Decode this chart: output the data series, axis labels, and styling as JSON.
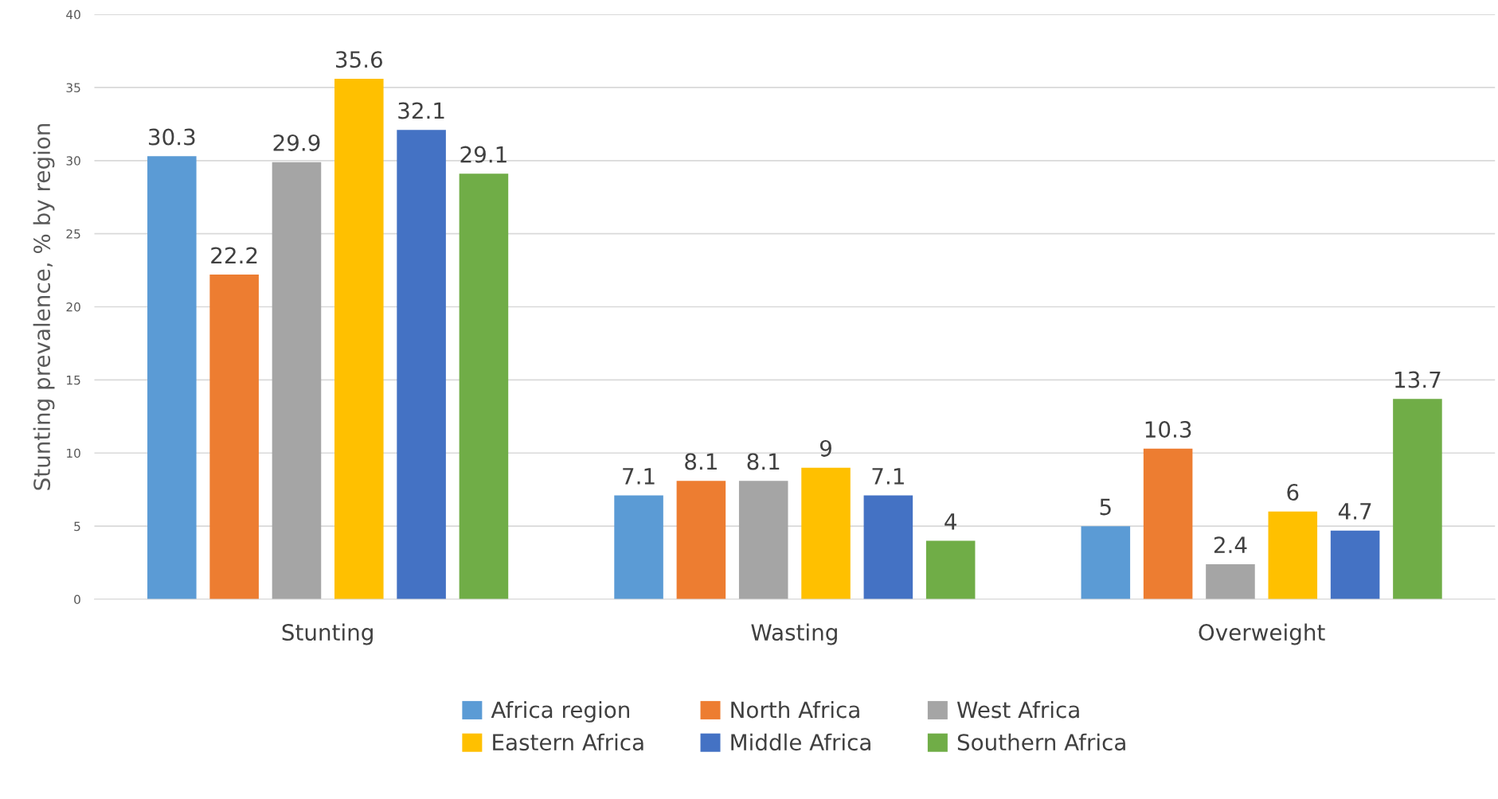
{
  "chart_data": {
    "type": "bar",
    "ylabel": "Stunting prevalence, % by region",
    "categories": [
      "Stunting",
      "Wasting",
      "Overweight"
    ],
    "series": [
      {
        "name": "Africa region",
        "color": "#5b9bd5",
        "values": [
          30.3,
          7.1,
          5
        ]
      },
      {
        "name": "North Africa",
        "color": "#ed7d31",
        "values": [
          22.2,
          8.1,
          10.3
        ]
      },
      {
        "name": "West Africa",
        "color": "#a5a5a5",
        "values": [
          29.9,
          8.1,
          2.4
        ]
      },
      {
        "name": "Eastern Africa",
        "color": "#ffc000",
        "values": [
          35.6,
          9,
          6
        ]
      },
      {
        "name": "Middle Africa",
        "color": "#4472c4",
        "values": [
          32.1,
          7.1,
          4.7
        ]
      },
      {
        "name": "Southern Africa",
        "color": "#70ad47",
        "values": [
          29.1,
          4,
          13.7
        ]
      }
    ],
    "ylim": [
      0,
      40
    ],
    "yticks": [
      0,
      5,
      10,
      15,
      20,
      25,
      30,
      35,
      40
    ],
    "grid": "y",
    "legend": "bottom",
    "data_labels": true
  }
}
